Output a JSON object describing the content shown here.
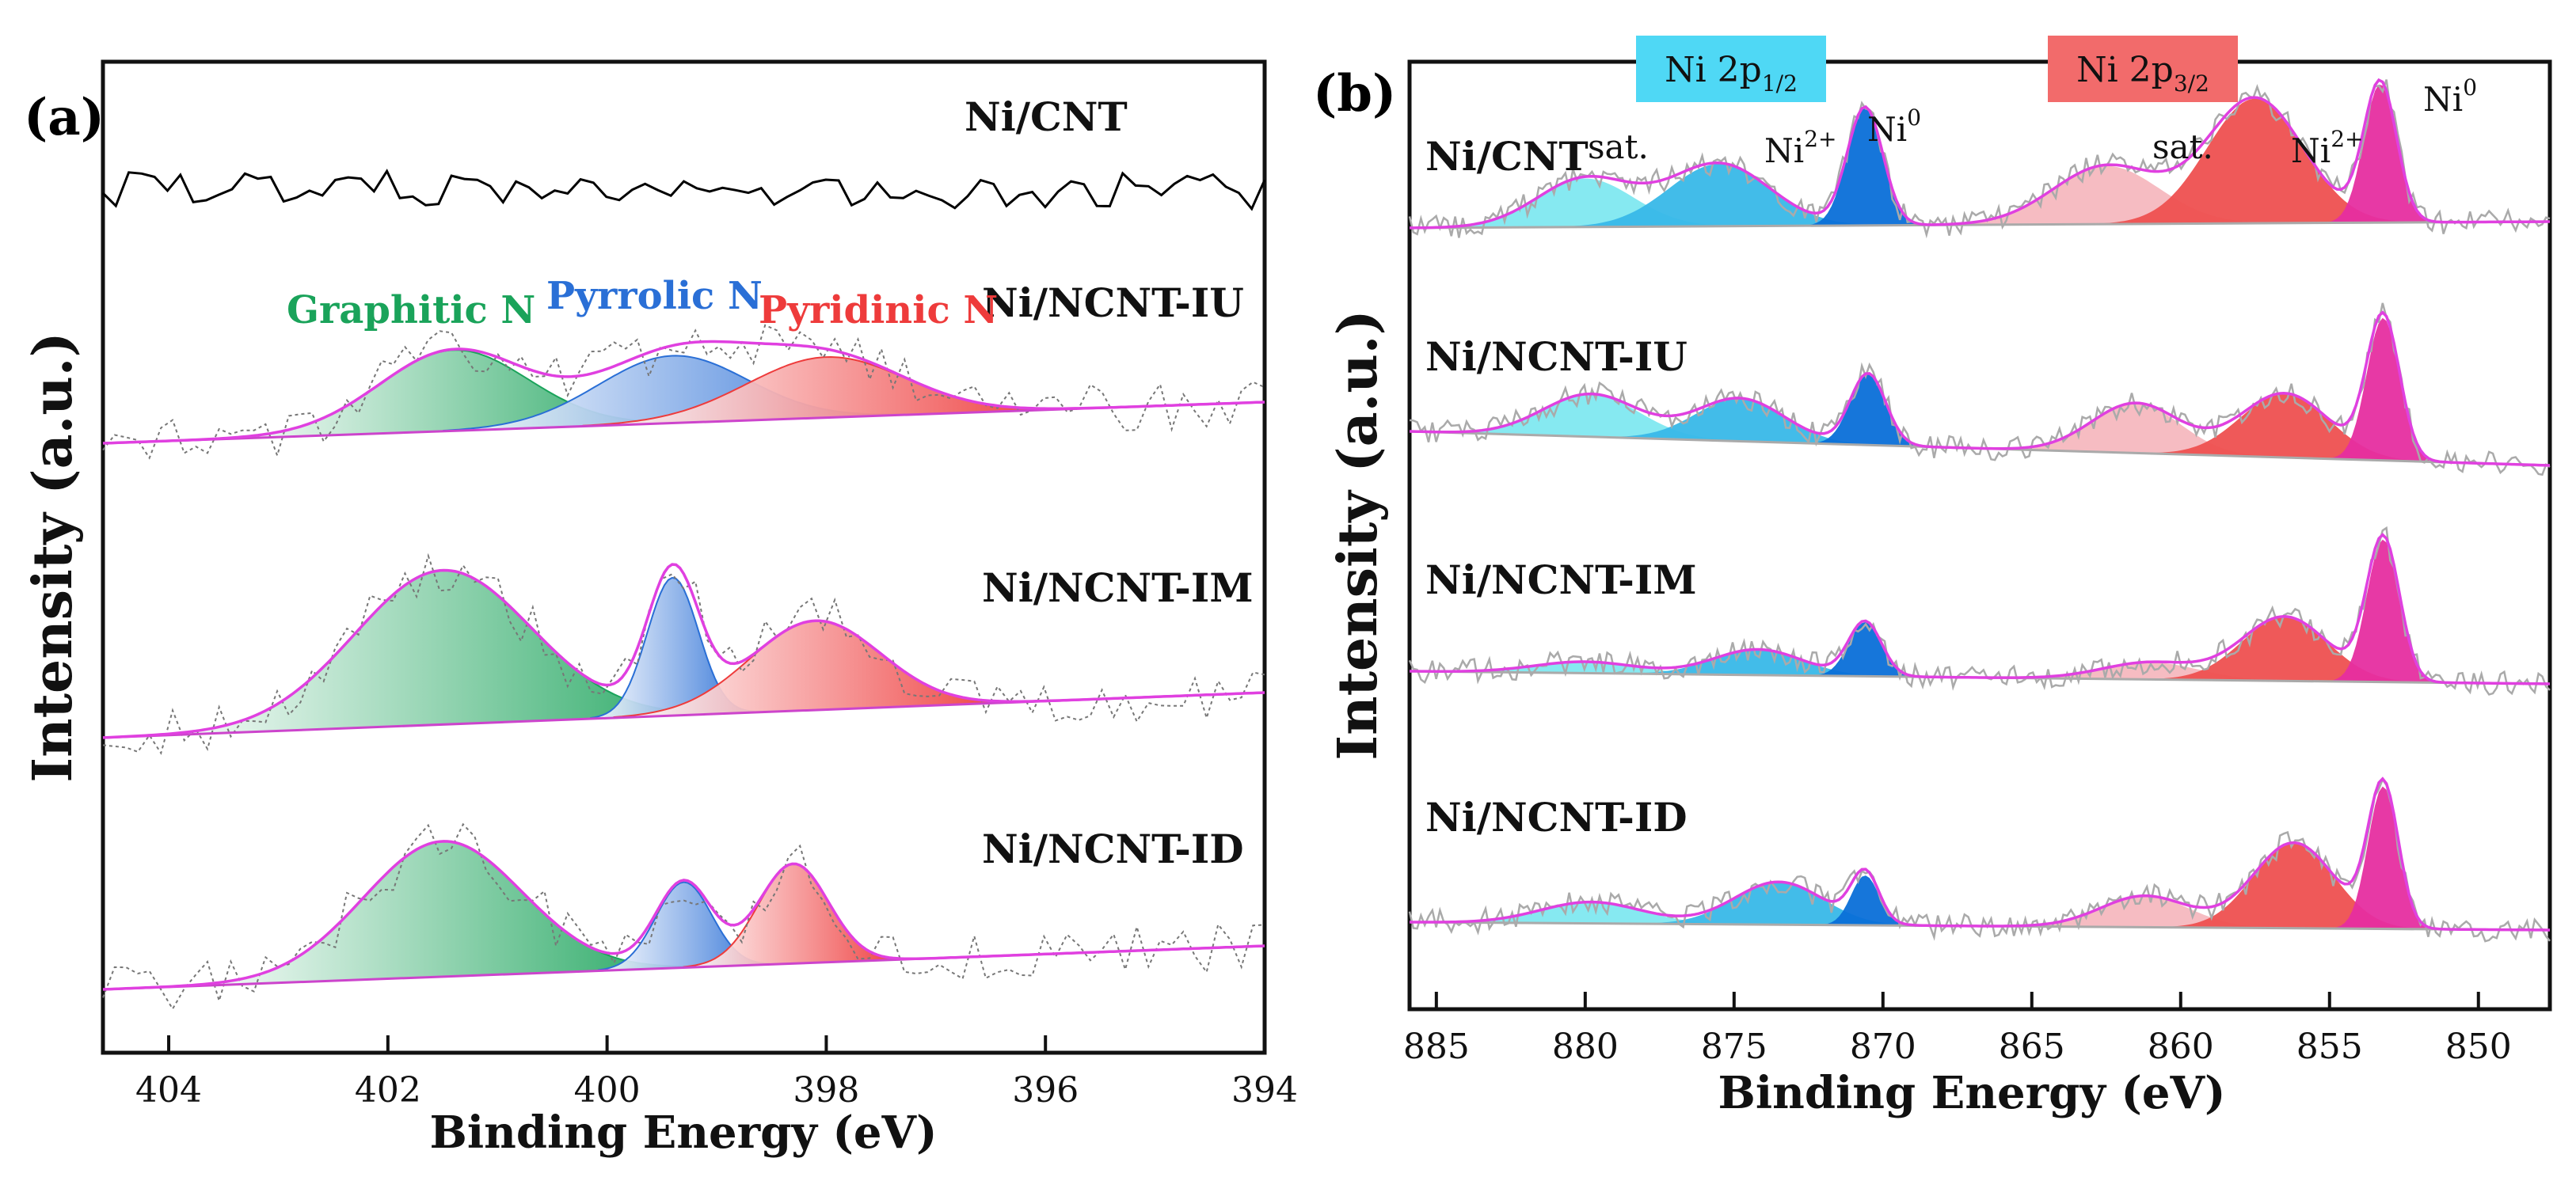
{
  "colors": {
    "envelope": "#e040e0",
    "baseline": "#cc44cc",
    "raw_a_ni_cnt": "#000000",
    "raw_a": "#777777",
    "raw_b": "#aaaaaa",
    "graphitic": "#1aa35a",
    "pyrrolic": "#2a6fd6",
    "pyridinic": "#ee3b3b",
    "sat_1_2": "#7fe8f0",
    "ni2_1_2": "#38b8e8",
    "ni0_1_2": "#0a6fd8",
    "sat_3_2": "#f5b8bf",
    "ni2_3_2": "#ee5050",
    "ni0_3_2": "#e62ea0",
    "band_1_2": "#4fd8f5",
    "band_3_2": "#f26b6b"
  },
  "chart_data": [
    {
      "type": "line",
      "panel": "(a)",
      "title": "",
      "xlabel": "Binding Energy (eV)",
      "ylabel": "Intensity (a.u.)",
      "xlim": [
        404.6,
        394.0
      ],
      "x_reversed": true,
      "xticks": [
        404,
        402,
        400,
        398,
        396,
        394
      ],
      "xtick_labels": [
        "404",
        "402",
        "400",
        "398",
        "396",
        "394"
      ],
      "peak_labels": {
        "graphitic": "Graphitic N",
        "pyrrolic": "Pyrrolic N",
        "pyridinic": "Pyridinic N"
      },
      "series": [
        {
          "name": "Ni/CNT",
          "raw_only": true,
          "baseline": [
            0,
            0
          ],
          "peaks": []
        },
        {
          "name": "Ni/NCNT-IU",
          "baseline": [
            0,
            0.18
          ],
          "peaks": [
            {
              "component": "graphitic",
              "center": 401.4,
              "fwhm": 1.6,
              "height": 0.6
            },
            {
              "component": "pyrrolic",
              "center": 399.4,
              "fwhm": 1.6,
              "height": 0.5
            },
            {
              "component": "pyridinic",
              "center": 398.0,
              "fwhm": 1.7,
              "height": 0.45
            }
          ]
        },
        {
          "name": "Ni/NCNT-IM",
          "baseline": [
            0,
            0.22
          ],
          "peaks": [
            {
              "component": "graphitic",
              "center": 401.5,
              "fwhm": 1.9,
              "height": 0.95
            },
            {
              "component": "pyrrolic",
              "center": 399.4,
              "fwhm": 0.55,
              "height": 0.85
            },
            {
              "component": "pyridinic",
              "center": 398.1,
              "fwhm": 1.4,
              "height": 0.55
            }
          ]
        },
        {
          "name": "Ni/NCNT-ID",
          "baseline": [
            0,
            0.2
          ],
          "peaks": [
            {
              "component": "graphitic",
              "center": 401.5,
              "fwhm": 1.7,
              "height": 0.95
            },
            {
              "component": "pyrrolic",
              "center": 399.3,
              "fwhm": 0.6,
              "height": 0.6
            },
            {
              "component": "pyridinic",
              "center": 398.3,
              "fwhm": 0.75,
              "height": 0.7
            }
          ]
        }
      ]
    },
    {
      "type": "line",
      "panel": "(b)",
      "title": "",
      "xlabel": "Binding Energy (eV)",
      "ylabel": "Intensity (a.u.)",
      "xlim": [
        885.9,
        847.6
      ],
      "x_reversed": true,
      "xticks": [
        885,
        880,
        875,
        870,
        865,
        860,
        855,
        850
      ],
      "xtick_labels": [
        "885",
        "880",
        "875",
        "870",
        "865",
        "860",
        "855",
        "850"
      ],
      "band_labels": {
        "p12": {
          "main": "Ni 2p",
          "sub": "1/2"
        },
        "p32": {
          "main": "Ni 2p",
          "sub": "3/2"
        }
      },
      "peak_labels": {
        "sat_1_2": "sat.",
        "ni2_1_2": {
          "main": "Ni",
          "sup": "2+"
        },
        "ni0_1_2": {
          "main": "Ni",
          "sup": "0"
        },
        "sat_3_2": "sat.",
        "ni2_3_2": {
          "main": "Ni",
          "sup": "2+"
        },
        "ni0_3_2": {
          "main": "Ni",
          "sup": "0"
        }
      },
      "series": [
        {
          "name": "Ni/CNT",
          "baseline": [
            0,
            0.05
          ],
          "peaks": [
            {
              "component": "sat_1_2",
              "center": 880.0,
              "fwhm": 3.8,
              "height": 0.35
            },
            {
              "component": "ni2_1_2",
              "center": 875.5,
              "fwhm": 4.0,
              "height": 0.45
            },
            {
              "component": "ni0_1_2",
              "center": 870.6,
              "fwhm": 1.4,
              "height": 0.85
            },
            {
              "component": "sat_3_2",
              "center": 862.5,
              "fwhm": 4.2,
              "height": 0.42
            },
            {
              "component": "ni2_3_2",
              "center": 857.5,
              "fwhm": 3.8,
              "height": 0.9
            },
            {
              "component": "ni0_3_2",
              "center": 853.3,
              "fwhm": 1.3,
              "height": 1.0
            }
          ]
        },
        {
          "name": "Ni/NCNT-IU",
          "baseline": [
            0,
            0.05
          ],
          "peaks": [
            {
              "component": "sat_1_2",
              "center": 879.8,
              "fwhm": 3.8,
              "height": 0.3
            },
            {
              "component": "ni2_1_2",
              "center": 874.8,
              "fwhm": 3.5,
              "height": 0.3
            },
            {
              "component": "ni0_1_2",
              "center": 870.5,
              "fwhm": 1.4,
              "height": 0.5
            },
            {
              "component": "sat_3_2",
              "center": 861.5,
              "fwhm": 3.5,
              "height": 0.35
            },
            {
              "component": "ni2_3_2",
              "center": 856.5,
              "fwhm": 3.5,
              "height": 0.45
            },
            {
              "component": "ni0_3_2",
              "center": 853.2,
              "fwhm": 1.3,
              "height": 1.0
            }
          ]
        },
        {
          "name": "Ni/NCNT-IM",
          "baseline": [
            0,
            0.05
          ],
          "peaks": [
            {
              "component": "sat_1_2",
              "center": 880.0,
              "fwhm": 4.0,
              "height": 0.08
            },
            {
              "component": "ni2_1_2",
              "center": 874.2,
              "fwhm": 3.5,
              "height": 0.18
            },
            {
              "component": "ni0_1_2",
              "center": 870.6,
              "fwhm": 1.3,
              "height": 0.38
            },
            {
              "component": "sat_3_2",
              "center": 861.0,
              "fwhm": 3.8,
              "height": 0.12
            },
            {
              "component": "ni2_3_2",
              "center": 856.5,
              "fwhm": 3.4,
              "height": 0.45
            },
            {
              "component": "ni0_3_2",
              "center": 853.2,
              "fwhm": 1.3,
              "height": 1.0
            }
          ]
        },
        {
          "name": "Ni/NCNT-ID",
          "baseline": [
            0,
            0.05
          ],
          "peaks": [
            {
              "component": "sat_1_2",
              "center": 879.8,
              "fwhm": 4.0,
              "height": 0.15
            },
            {
              "component": "ni2_1_2",
              "center": 873.5,
              "fwhm": 3.5,
              "height": 0.3
            },
            {
              "component": "ni0_1_2",
              "center": 870.6,
              "fwhm": 1.1,
              "height": 0.35
            },
            {
              "component": "sat_3_2",
              "center": 861.2,
              "fwhm": 3.5,
              "height": 0.22
            },
            {
              "component": "ni2_3_2",
              "center": 856.2,
              "fwhm": 3.2,
              "height": 0.6
            },
            {
              "component": "ni0_3_2",
              "center": 853.2,
              "fwhm": 1.2,
              "height": 1.0
            }
          ]
        }
      ]
    }
  ]
}
